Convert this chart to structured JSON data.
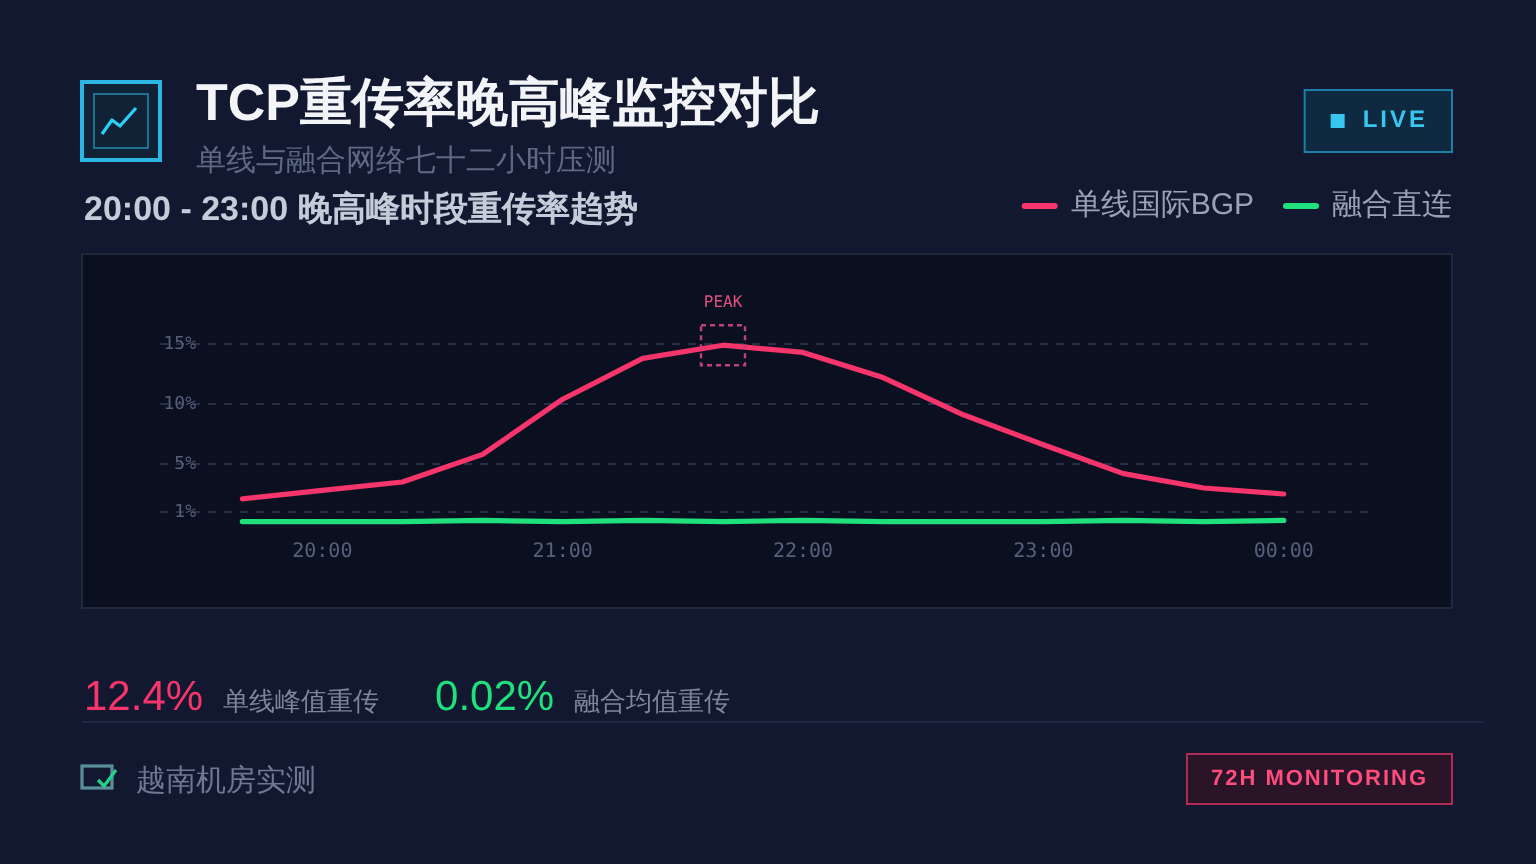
{
  "chart_data": {
    "type": "line",
    "title": "TCP重传率晚高峰监控对比",
    "subtitle": "单线与融合网络七十二小时压测",
    "annotations": [
      "20:00 - 23:00 晚高峰时段重传率趋势",
      "LIVE",
      {
        "text": "PEAK",
        "x": 21.667,
        "y": 14.9
      },
      "12.4%",
      "单线峰值重传",
      "0.02%",
      "融合均值重传",
      "越南机房实测",
      "72H MONITORING"
    ],
    "x": [
      19.667,
      20,
      20.333,
      20.667,
      21,
      21.333,
      21.667,
      22,
      22.333,
      22.667,
      23,
      23.333,
      23.667,
      24
    ],
    "series": [
      {
        "name": "单线国际BGP",
        "color": "#f5356b",
        "values": [
          2.1,
          2.8,
          3.5,
          5.8,
          10.4,
          13.8,
          14.9,
          14.3,
          12.2,
          9.1,
          6.6,
          4.2,
          3.0,
          2.5
        ]
      },
      {
        "name": "融合直连",
        "color": "#1fe07c",
        "values": [
          0.2,
          0.2,
          0.2,
          0.3,
          0.2,
          0.3,
          0.2,
          0.3,
          0.2,
          0.2,
          0.2,
          0.3,
          0.2,
          0.3
        ]
      }
    ],
    "xlim": [
      19,
      24.7
    ],
    "xticks": [
      {
        "value": 20,
        "label": "20:00"
      },
      {
        "value": 21,
        "label": "21:00"
      },
      {
        "value": 22,
        "label": "22:00"
      },
      {
        "value": 23,
        "label": "23:00"
      },
      {
        "value": 24,
        "label": "00:00"
      }
    ],
    "ylim": [
      -7,
      22.5
    ],
    "yticks": [
      {
        "value": 1,
        "label": "1%"
      },
      {
        "value": 5,
        "label": "5%"
      },
      {
        "value": 10,
        "label": "10%"
      },
      {
        "value": 15,
        "label": "15%"
      }
    ],
    "grid": "y",
    "legend": "top right",
    "line_style": "solid"
  }
}
